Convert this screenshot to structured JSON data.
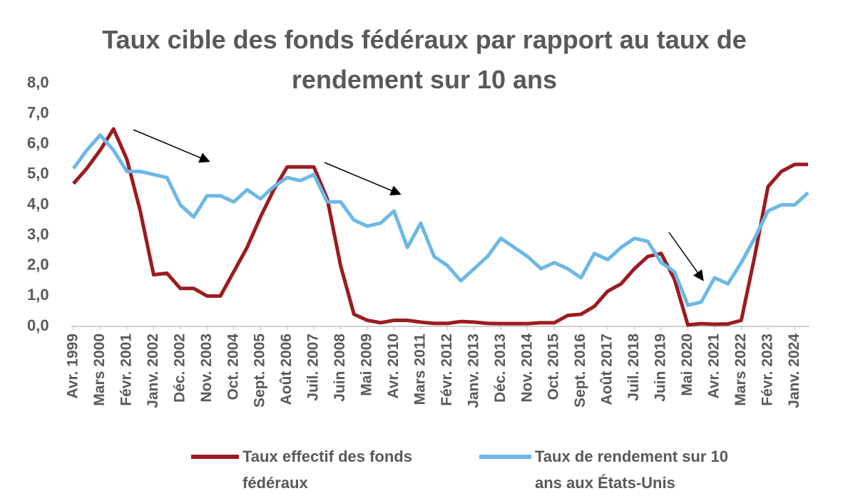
{
  "chart_data": {
    "type": "line",
    "title": "Taux cible des fonds fédéraux par rapport au taux de rendement sur 10 ans",
    "categories": [
      "Avr. 1999",
      null,
      "Mars 2000",
      null,
      "Févr. 2001",
      null,
      "Janv. 2002",
      null,
      "Déc. 2002",
      null,
      "Nov. 2003",
      null,
      "Oct. 2004",
      null,
      "Sept. 2005",
      null,
      "Août 2006",
      null,
      "Juil. 2007",
      null,
      "Juin 2008",
      null,
      "Mai 2009",
      null,
      "Avr. 2010",
      null,
      "Mars 2011",
      null,
      "Févr. 2012",
      null,
      "Janv. 2013",
      null,
      "Déc. 2013",
      null,
      "Nov. 2014",
      null,
      "Oct. 2015",
      null,
      "Sept. 2016",
      null,
      "Août 2017",
      null,
      "Juil. 2018",
      null,
      "Juin 2019",
      null,
      "Mai 2020",
      null,
      "Avr. 2021",
      null,
      "Mars 2022",
      null,
      "Févr. 2023",
      null,
      "Janv. 2024",
      null
    ],
    "series": [
      {
        "name": "Taux effectif des fonds fédéraux",
        "color": "#9b1c1f",
        "values": [
          4.7,
          5.2,
          5.8,
          6.5,
          5.5,
          3.8,
          1.7,
          1.75,
          1.25,
          1.25,
          1.0,
          1.0,
          1.8,
          2.6,
          3.6,
          4.5,
          5.25,
          5.25,
          5.25,
          4.2,
          2.0,
          0.4,
          0.2,
          0.12,
          0.2,
          0.2,
          0.14,
          0.1,
          0.1,
          0.16,
          0.14,
          0.1,
          0.09,
          0.09,
          0.09,
          0.12,
          0.12,
          0.36,
          0.4,
          0.66,
          1.16,
          1.4,
          1.9,
          2.3,
          2.4,
          1.55,
          0.05,
          0.09,
          0.07,
          0.08,
          0.2,
          2.3,
          4.6,
          5.1,
          5.33,
          5.33
        ]
      },
      {
        "name": "Taux de rendement sur 10 ans aux États-Unis",
        "color": "#6cb8e6",
        "values": [
          5.2,
          5.8,
          6.3,
          5.8,
          5.1,
          5.1,
          5.0,
          4.9,
          4.0,
          3.6,
          4.3,
          4.3,
          4.1,
          4.5,
          4.2,
          4.6,
          4.9,
          4.8,
          5.0,
          4.1,
          4.1,
          3.5,
          3.3,
          3.4,
          3.8,
          2.6,
          3.4,
          2.3,
          2.0,
          1.5,
          1.9,
          2.3,
          2.9,
          2.6,
          2.3,
          1.9,
          2.1,
          1.9,
          1.6,
          2.4,
          2.2,
          2.6,
          2.9,
          2.8,
          2.1,
          1.8,
          0.7,
          0.8,
          1.6,
          1.4,
          2.1,
          2.9,
          3.8,
          4.0,
          4.0,
          4.4
        ]
      }
    ],
    "ylim": [
      0,
      8
    ],
    "yticks": [
      {
        "value": 0,
        "label": "0,0"
      },
      {
        "value": 1,
        "label": "1,0"
      },
      {
        "value": 2,
        "label": "2,0"
      },
      {
        "value": 3,
        "label": "3,0"
      },
      {
        "value": 4,
        "label": "4,0"
      },
      {
        "value": 5,
        "label": "5,0"
      },
      {
        "value": 6,
        "label": "6,0"
      },
      {
        "value": 7,
        "label": "7,0"
      },
      {
        "value": 8,
        "label": "8,0"
      }
    ],
    "grid": false
  }
}
